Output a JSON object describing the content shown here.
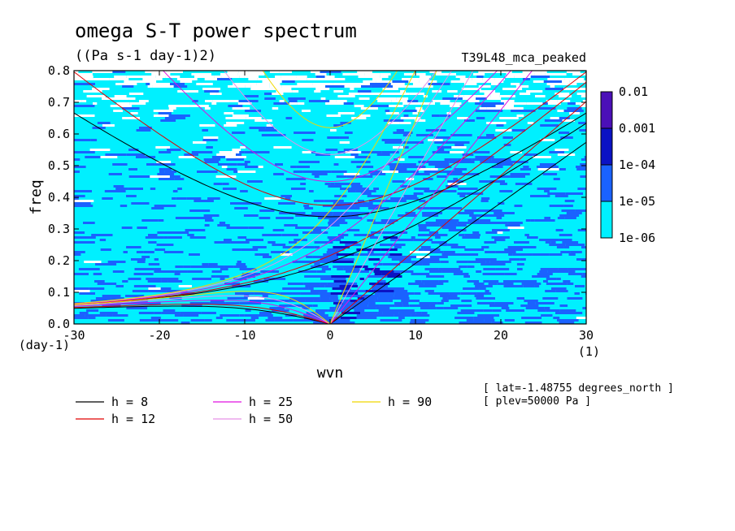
{
  "chart_data": {
    "type": "heatmap",
    "title": "omega S-T power spectrum",
    "subtitle": "((Pa s-1 day-1)2)",
    "run_label": "T39L48_mca_peaked",
    "xlabel": "wvn",
    "ylabel": "freq",
    "xunit": "(1)",
    "yunit": "(day-1)",
    "xlim": [
      -30,
      30
    ],
    "ylim": [
      0,
      0.8
    ],
    "xticks": [
      -30,
      -20,
      -10,
      0,
      10,
      20,
      30
    ],
    "xtick_labels": [
      "-30",
      "-20",
      "-10",
      "0",
      "10",
      "20",
      "30"
    ],
    "yticks": [
      0,
      0.1,
      0.2,
      0.3,
      0.4,
      0.5,
      0.6,
      0.7,
      0.8
    ],
    "ytick_labels": [
      "0.0",
      "0.1",
      "0.2",
      "0.3",
      "0.4",
      "0.5",
      "0.6",
      "0.7",
      "0.8"
    ],
    "colorbar": {
      "levels": [
        "0.01",
        "0.001",
        "1e-04",
        "1e-05",
        "1e-06"
      ],
      "colors": [
        "#4b10b8",
        "#0b12c4",
        "#1a62ff",
        "#00f0ff",
        "#ffffff"
      ]
    },
    "overlay_curves": [
      {
        "name": "h =  8",
        "color": "#000000"
      },
      {
        "name": "h = 12",
        "color": "#e00000"
      },
      {
        "name": "h = 25",
        "color": "#e010e0"
      },
      {
        "name": "h = 50",
        "color": "#e890e8"
      },
      {
        "name": "h = 90",
        "color": "#f0d800"
      }
    ],
    "annotations": [
      "[ lat=-1.48755 degrees_north ]",
      "[ plev=50000 Pa ]"
    ]
  }
}
